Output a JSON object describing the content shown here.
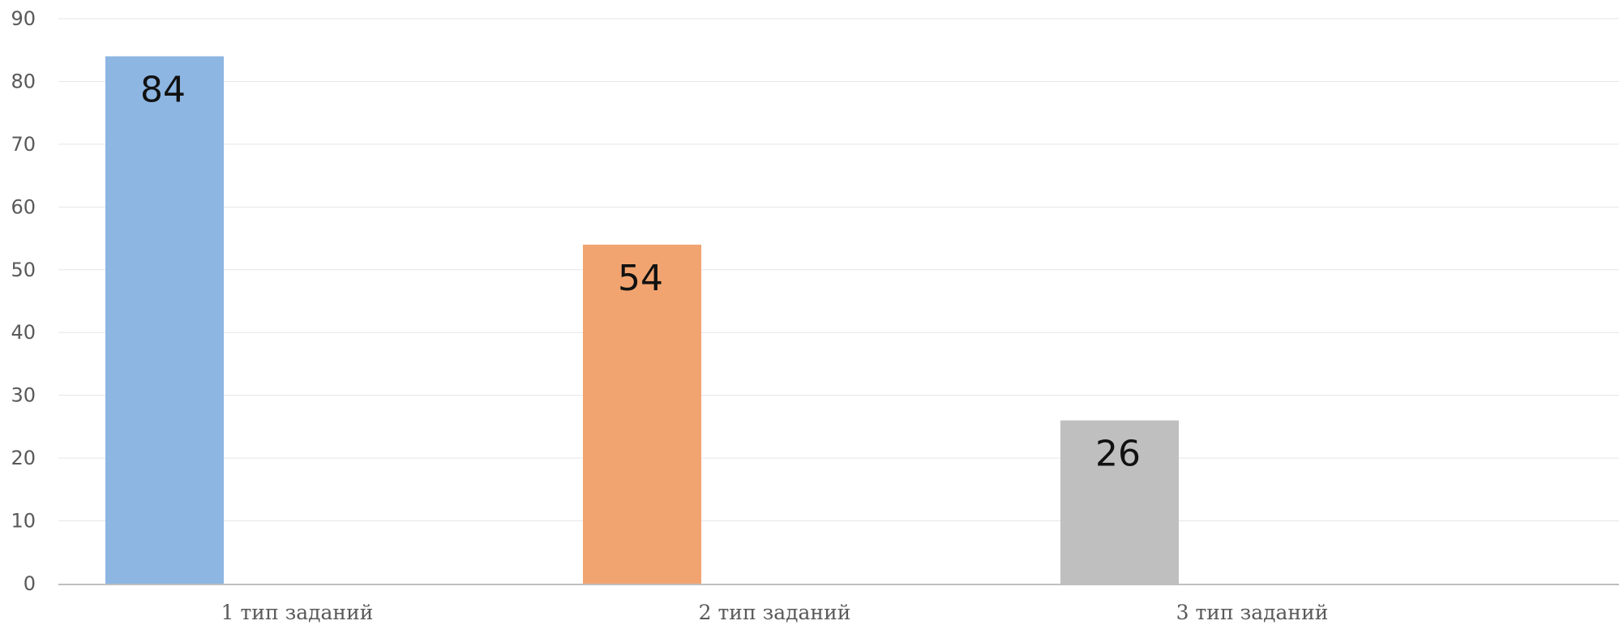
{
  "chart_data": {
    "type": "bar",
    "title": "",
    "xlabel": "",
    "ylabel": "",
    "categories": [
      "1 тип заданий",
      "2 тип заданий",
      "3 тип заданий"
    ],
    "values": [
      84,
      54,
      26
    ],
    "colors": [
      "#8db6e2",
      "#f1a46f",
      "#bfbfbf"
    ],
    "ylim": [
      0,
      90
    ],
    "yticks": [
      0,
      10,
      20,
      30,
      40,
      50,
      60,
      70,
      80,
      90
    ],
    "grid": true,
    "legend": "none",
    "data_labels": true
  }
}
